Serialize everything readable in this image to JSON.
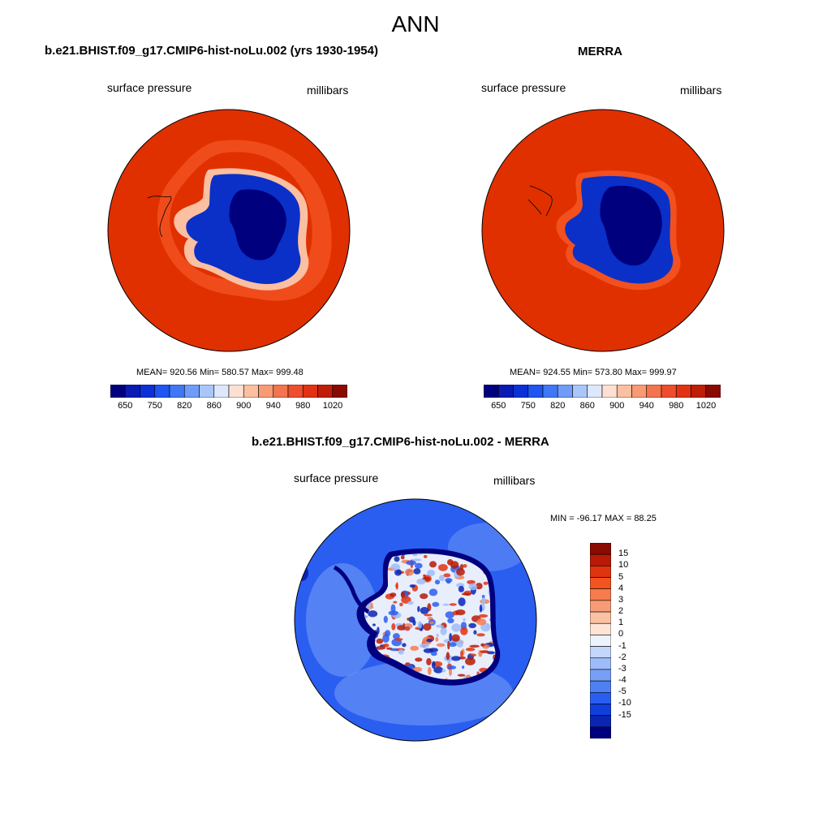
{
  "title": "ANN",
  "panels": [
    {
      "title": "b.e21.BHIST.f09_g17.CMIP6-hist-noLu.002 (yrs 1930-1954)",
      "left_label": "surface pressure",
      "right_label": "millibars",
      "stats": "MEAN= 920.56  Min= 580.57  Max= 999.48"
    },
    {
      "title": "MERRA",
      "left_label": "surface pressure",
      "right_label": "millibars",
      "stats": "MEAN= 924.55  Min= 573.80  Max= 999.97"
    },
    {
      "title": "b.e21.BHIST.f09_g17.CMIP6-hist-noLu.002 - MERRA",
      "left_label": "surface pressure",
      "right_label": "millibars",
      "stats": "MIN = -96.17 MAX =  88.25"
    }
  ],
  "colorbar_abs": {
    "colors": [
      "#00007f",
      "#0a1ab2",
      "#0b31d6",
      "#1f55f0",
      "#3f77f5",
      "#6f9cf8",
      "#a9c6fb",
      "#dde8fd",
      "#fde0d2",
      "#fbbfa1",
      "#f89a74",
      "#f3744e",
      "#ee4e2e",
      "#e23213",
      "#c01e08",
      "#8a0a02"
    ],
    "ticks": [
      "650",
      "750",
      "820",
      "860",
      "900",
      "940",
      "980",
      "1020"
    ]
  },
  "colorbar_diff": {
    "colors": [
      "#8a0a02",
      "#b71a06",
      "#e0330f",
      "#f2531f",
      "#f67b4d",
      "#f89c77",
      "#fbc1a3",
      "#fde4d6",
      "#eef2fd",
      "#c4d6fb",
      "#9ebcf9",
      "#779ff6",
      "#4f80f3",
      "#2a5ef0",
      "#0f3fdc",
      "#0a25b4",
      "#00007f"
    ],
    "ticks": [
      "15",
      "10",
      "5",
      "4",
      "3",
      "2",
      "1",
      "0",
      "-1",
      "-2",
      "-3",
      "-4",
      "-5",
      "-10",
      "-15"
    ]
  },
  "map_colors": {
    "ocean_abs": "#e03000",
    "ocean_abs_light": "#f2501e",
    "ice_dark": "#00007f",
    "ice_mid": "#0a30c8",
    "ice_light": "#3f70f0",
    "diff_ocean": "#2a5ef0",
    "diff_ocean_light": "#779ff6",
    "diff_red": "#b71a06",
    "diff_white": "#e8eefc"
  }
}
